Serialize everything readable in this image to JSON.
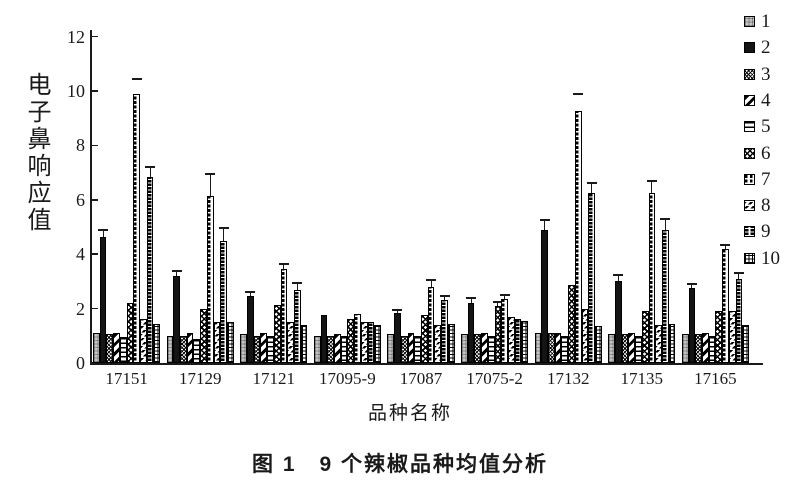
{
  "figure": {
    "caption": "图 1　9 个辣椒品种均值分析"
  },
  "chart_data": {
    "type": "bar",
    "title": "",
    "xlabel": "品种名称",
    "ylabel": "电子鼻响应值",
    "ylim": [
      0,
      12
    ],
    "yticks": [
      0,
      2,
      4,
      6,
      8,
      10,
      12
    ],
    "grid": false,
    "legend_position": "right",
    "error_bars": "upper",
    "colors": {
      "ink": "#1a1a1a",
      "background": "#ffffff",
      "light_bar": "#c4c4c4"
    },
    "categories": [
      "17151",
      "17129",
      "17121",
      "17095-9",
      "17087",
      "17075-2",
      "17132",
      "17135",
      "17165"
    ],
    "series": [
      {
        "name": "1",
        "pattern": "light-gray-grid",
        "values": [
          1.1,
          1.0,
          1.05,
          1.0,
          1.05,
          1.05,
          1.1,
          1.05,
          1.05
        ],
        "errors": [
          0,
          0,
          0,
          0,
          0,
          0,
          0,
          0,
          0
        ]
      },
      {
        "name": "2",
        "pattern": "solid-black",
        "values": [
          4.65,
          3.2,
          2.45,
          1.75,
          1.85,
          2.2,
          4.9,
          3.0,
          2.75
        ],
        "errors": [
          0.25,
          0.2,
          0.15,
          0,
          0.1,
          0.2,
          0.35,
          0.25,
          0.15
        ]
      },
      {
        "name": "3",
        "pattern": "cross-hatch-fine",
        "values": [
          1.05,
          1.0,
          1.0,
          1.0,
          1.0,
          1.05,
          1.1,
          1.05,
          1.05
        ],
        "errors": [
          0,
          0,
          0,
          0,
          0,
          0,
          0,
          0,
          0
        ]
      },
      {
        "name": "4",
        "pattern": "diagonal-thick",
        "values": [
          1.1,
          1.1,
          1.1,
          1.05,
          1.1,
          1.1,
          1.1,
          1.1,
          1.1
        ],
        "errors": [
          0,
          0,
          0,
          0,
          0,
          0,
          0,
          0,
          0
        ]
      },
      {
        "name": "5",
        "pattern": "horizontal-lines",
        "values": [
          0.95,
          0.9,
          1.0,
          1.0,
          1.0,
          1.0,
          1.0,
          1.0,
          1.0
        ],
        "errors": [
          0,
          0,
          0,
          0,
          0,
          0,
          0,
          0,
          0
        ]
      },
      {
        "name": "6",
        "pattern": "cross-hatch-coarse",
        "values": [
          2.2,
          2.0,
          2.15,
          1.6,
          1.75,
          2.1,
          2.85,
          1.9,
          1.9
        ],
        "errors": [
          0,
          0,
          0,
          0,
          0,
          0.15,
          0,
          0,
          0
        ]
      },
      {
        "name": "7",
        "pattern": "dash-grid",
        "values": [
          9.9,
          6.15,
          3.45,
          1.8,
          2.8,
          2.35,
          9.25,
          6.25,
          4.2
        ],
        "errors": [
          0.55,
          0.8,
          0.2,
          0,
          0.25,
          0.15,
          0.65,
          0.45,
          0.15
        ],
        "cap_only": [
          true,
          false,
          false,
          false,
          false,
          false,
          true,
          false,
          false
        ]
      },
      {
        "name": "8",
        "pattern": "diagonal-dashes",
        "values": [
          1.6,
          1.5,
          1.5,
          1.5,
          1.4,
          1.7,
          2.0,
          1.4,
          1.9
        ],
        "errors": [
          0,
          0,
          0,
          0,
          0,
          0,
          0,
          0,
          0
        ]
      },
      {
        "name": "9",
        "pattern": "vertical-chain",
        "values": [
          6.85,
          4.5,
          2.7,
          1.5,
          2.3,
          1.6,
          6.25,
          4.9,
          3.1
        ],
        "errors": [
          0.35,
          0.45,
          0.25,
          0,
          0.15,
          0,
          0.35,
          0.4,
          0.2
        ]
      },
      {
        "name": "10",
        "pattern": "fine-grid",
        "values": [
          1.45,
          1.5,
          1.4,
          1.4,
          1.45,
          1.55,
          1.35,
          1.45,
          1.4
        ],
        "errors": [
          0,
          0,
          0,
          0,
          0,
          0,
          0,
          0,
          0
        ]
      }
    ]
  }
}
